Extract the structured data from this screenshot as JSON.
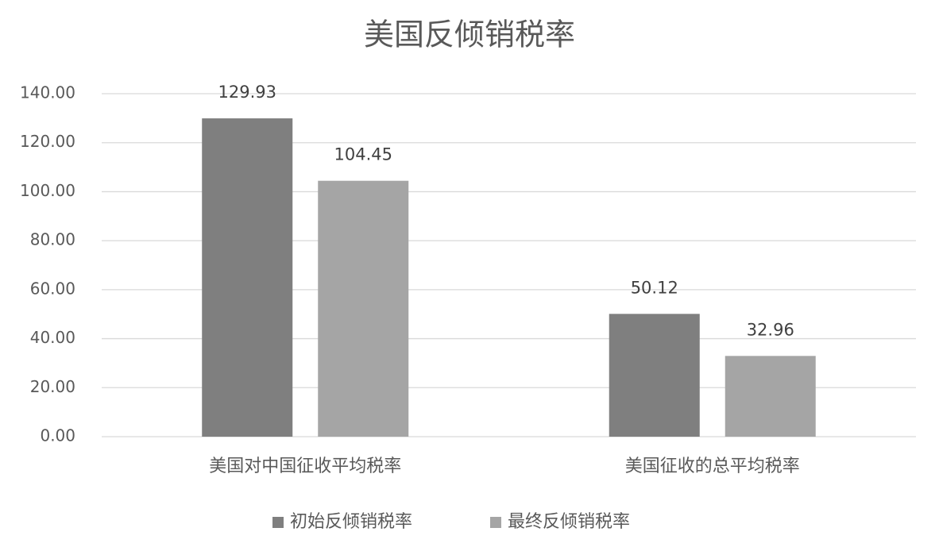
{
  "chart_data": {
    "type": "bar",
    "title": "美国反倾销税率",
    "categories": [
      "美国对中国征收平均税率",
      "美国征收的总平均税率"
    ],
    "series": [
      {
        "name": "初始反倾销税率",
        "color": "#7f7f7f",
        "values": [
          129.93,
          50.12
        ]
      },
      {
        "name": "最终反倾销税率",
        "color": "#a5a5a5",
        "values": [
          104.45,
          32.96
        ]
      }
    ],
    "ylim": [
      0,
      140
    ],
    "yticks": [
      {
        "value": 0,
        "label": "0.00"
      },
      {
        "value": 20,
        "label": "20.00"
      },
      {
        "value": 40,
        "label": "40.00"
      },
      {
        "value": 60,
        "label": "60.00"
      },
      {
        "value": 80,
        "label": "80.00"
      },
      {
        "value": 100,
        "label": "100.00"
      },
      {
        "value": 120,
        "label": "120.00"
      },
      {
        "value": 140,
        "label": "140.00"
      }
    ],
    "grid": true,
    "legend": "bottom"
  }
}
